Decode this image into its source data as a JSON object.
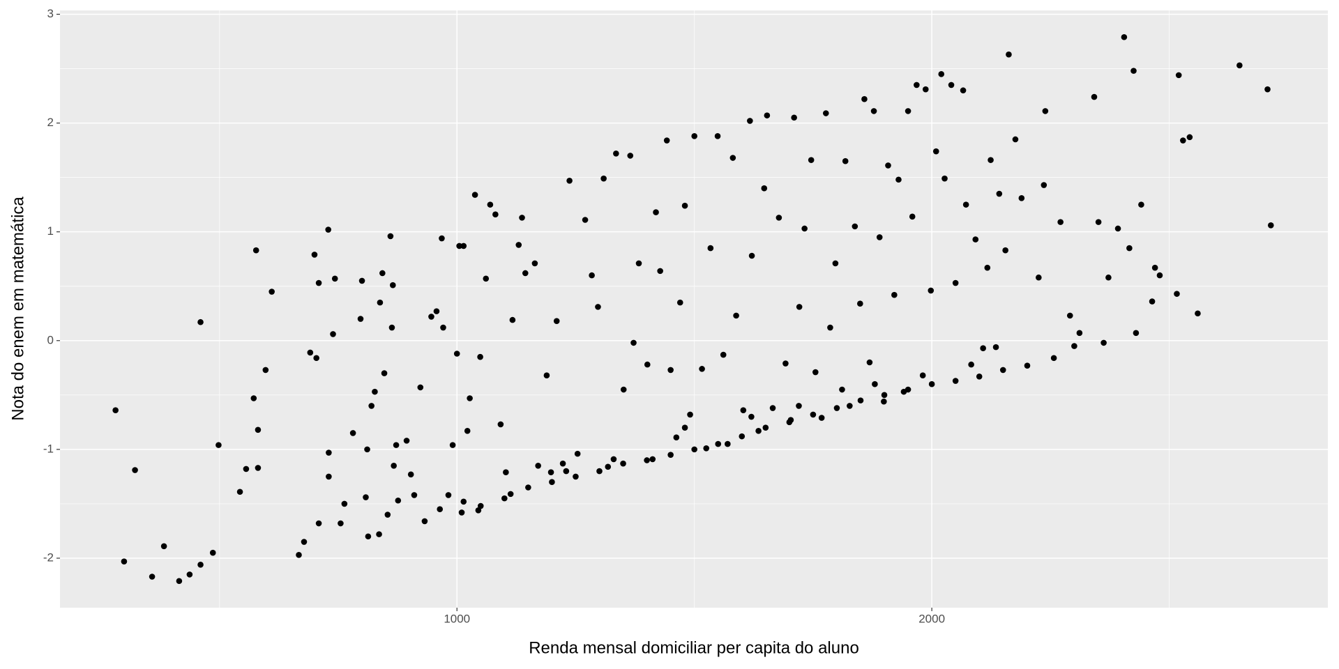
{
  "chart_data": {
    "type": "scatter",
    "x_label": "Renda mensal domiciliar per capita do aluno",
    "y_label": "Nota do enem em matemática",
    "color": "#000000",
    "grid": true,
    "xlim": [
      164,
      2834
    ],
    "ylim": [
      -2.455,
      3.035
    ],
    "xticks": [
      1000,
      2000
    ],
    "yticks": [
      -2,
      -1,
      0,
      1,
      2,
      3
    ],
    "x": [
      281,
      299,
      322,
      358,
      383,
      415,
      437,
      460,
      460,
      486,
      498,
      543,
      556,
      572,
      577,
      581,
      581,
      597,
      610,
      667,
      678,
      691,
      700,
      704,
      709,
      709,
      729,
      730,
      730,
      739,
      743,
      755,
      763,
      781,
      797,
      800,
      808,
      811,
      813,
      820,
      827,
      836,
      838,
      843,
      847,
      854,
      860,
      863,
      865,
      867,
      872,
      876,
      894,
      903,
      910,
      923,
      932,
      946,
      957,
      964,
      968,
      971,
      982,
      991,
      1000,
      1005,
      1014,
      1014,
      1022,
      1027,
      1038,
      1045,
      1049,
      1061,
      1070,
      1081,
      1092,
      1103,
      1113,
      1117,
      1130,
      1137,
      1144,
      1164,
      1171,
      1189,
      1198,
      1210,
      1223,
      1237,
      1254,
      1270,
      1284,
      1297,
      1309,
      1318,
      1335,
      1351,
      1365,
      1372,
      1383,
      1401,
      1412,
      1419,
      1428,
      1442,
      1450,
      1462,
      1470,
      1480,
      1491,
      1500,
      1516,
      1525,
      1534,
      1549,
      1561,
      1570,
      1581,
      1588,
      1603,
      1617,
      1621,
      1635,
      1647,
      1653,
      1665,
      1678,
      1692,
      1703,
      1710,
      1721,
      1732,
      1746,
      1755,
      1768,
      1777,
      1786,
      1797,
      1811,
      1818,
      1827,
      1838,
      1849,
      1858,
      1869,
      1878,
      1890,
      1899,
      1908,
      1921,
      1930,
      1941,
      1950,
      1959,
      1968,
      1981,
      1987,
      1998,
      2009,
      2020,
      2027,
      2041,
      2050,
      2066,
      2072,
      2083,
      2092,
      2108,
      2117,
      2124,
      2135,
      2142,
      2155,
      2162,
      2176,
      2189,
      2201,
      2225,
      2236,
      2239,
      2257,
      2271,
      2291,
      2300,
      2311,
      2342,
      2351,
      2362,
      2372,
      2392,
      2405,
      2416,
      2425,
      2430,
      2441,
      2464,
      2470,
      2480,
      2516,
      2520,
      2529,
      2543,
      2560,
      2648,
      2707,
      2714,
      1350,
      1400,
      1450,
      1500,
      1550,
      1600,
      1650,
      1700,
      1750,
      1800,
      1850,
      1900,
      1950,
      2000,
      2050,
      2100,
      2150,
      1200,
      1250,
      1300,
      1150,
      1100,
      1050,
      1010,
      1230,
      1330,
      1480,
      1620,
      1720,
      1880
    ],
    "y": [
      -0.64,
      -2.03,
      -1.19,
      -2.17,
      -1.89,
      -2.21,
      -2.15,
      -2.06,
      0.17,
      -1.95,
      -0.96,
      -1.39,
      -1.18,
      -0.53,
      0.83,
      -0.82,
      -1.17,
      -0.27,
      0.45,
      -1.97,
      -1.85,
      -0.11,
      0.79,
      -0.16,
      0.53,
      -1.68,
      1.02,
      -1.03,
      -1.25,
      0.06,
      0.57,
      -1.68,
      -1.5,
      -0.85,
      0.2,
      0.55,
      -1.44,
      -1.0,
      -1.8,
      -0.6,
      -0.47,
      -1.78,
      0.35,
      0.62,
      -0.3,
      -1.6,
      0.96,
      0.12,
      0.51,
      -1.15,
      -0.96,
      -1.47,
      -0.92,
      -1.23,
      -1.42,
      -0.43,
      -1.66,
      0.22,
      0.27,
      -1.55,
      0.94,
      0.12,
      -1.42,
      -0.96,
      -0.12,
      0.87,
      0.87,
      -1.48,
      -0.83,
      -0.53,
      1.34,
      -1.56,
      -0.15,
      0.57,
      1.25,
      1.16,
      -0.77,
      -1.21,
      -1.41,
      0.19,
      0.88,
      1.13,
      0.62,
      0.71,
      -1.15,
      -0.32,
      -1.21,
      0.18,
      -1.13,
      1.47,
      -1.04,
      1.11,
      0.6,
      0.31,
      1.49,
      -1.16,
      1.72,
      -0.45,
      1.7,
      -0.02,
      0.71,
      -0.22,
      -1.09,
      1.18,
      0.64,
      1.84,
      -0.27,
      -0.89,
      0.35,
      1.24,
      -0.68,
      1.88,
      -0.26,
      -0.99,
      0.85,
      1.88,
      -0.13,
      -0.95,
      1.68,
      0.23,
      -0.64,
      2.02,
      0.78,
      -0.83,
      1.4,
      2.07,
      -0.62,
      1.13,
      -0.21,
      -0.73,
      2.05,
      0.31,
      1.03,
      1.66,
      -0.29,
      -0.71,
      2.09,
      0.12,
      0.71,
      -0.45,
      1.65,
      -0.6,
      1.05,
      0.34,
      2.22,
      -0.2,
      2.11,
      0.95,
      -0.56,
      1.61,
      0.42,
      1.48,
      -0.47,
      2.11,
      1.14,
      2.35,
      -0.32,
      2.31,
      0.46,
      1.74,
      2.45,
      1.49,
      2.35,
      0.53,
      2.3,
      1.25,
      -0.22,
      0.93,
      -0.07,
      0.67,
      1.66,
      -0.06,
      1.35,
      0.83,
      2.63,
      1.85,
      1.31,
      -0.23,
      0.58,
      1.43,
      2.11,
      -0.16,
      1.09,
      0.23,
      -0.05,
      0.07,
      2.24,
      1.09,
      -0.02,
      0.58,
      1.03,
      2.79,
      0.85,
      2.48,
      0.07,
      1.25,
      0.36,
      0.67,
      0.6,
      0.43,
      2.44,
      1.84,
      1.87,
      0.25,
      2.53,
      2.31,
      1.06,
      -1.13,
      -1.1,
      -1.05,
      -1.0,
      -0.95,
      -0.88,
      -0.8,
      -0.75,
      -0.68,
      -0.62,
      -0.55,
      -0.5,
      -0.45,
      -0.4,
      -0.37,
      -0.33,
      -0.27,
      -1.3,
      -1.25,
      -1.2,
      -1.35,
      -1.45,
      -1.52,
      -1.58,
      -1.2,
      -1.09,
      -0.8,
      -0.7,
      -0.6,
      -0.4
    ]
  }
}
